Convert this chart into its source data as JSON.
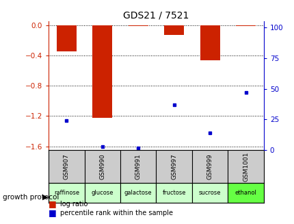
{
  "title": "GDS21 / 7521",
  "samples": [
    "GSM907",
    "GSM990",
    "GSM991",
    "GSM997",
    "GSM999",
    "GSM1001"
  ],
  "protocols": [
    "raffinose",
    "glucose",
    "galactose",
    "fructose",
    "sucrose",
    "ethanol"
  ],
  "log_ratio": [
    -0.35,
    -1.22,
    -0.01,
    -0.13,
    -0.46,
    -0.01
  ],
  "percentile_rank": [
    24,
    3,
    2,
    37,
    14,
    47
  ],
  "ylim_left": [
    -1.65,
    0.05
  ],
  "ylim_right": [
    0,
    105
  ],
  "yticks_left": [
    0,
    -0.4,
    -0.8,
    -1.2,
    -1.6
  ],
  "yticks_right": [
    0,
    25,
    50,
    75,
    100
  ],
  "bar_color": "#cc2200",
  "dot_color": "#0000cc",
  "protocol_bg_light": "#ccffcc",
  "protocol_bg_dark": "#66ff44",
  "sample_bg": "#cccccc",
  "grid_color": "#000000",
  "left_tick_color": "#cc2200",
  "right_tick_color": "#0000cc",
  "legend_log": "log ratio",
  "legend_pct": "percentile rank within the sample",
  "growth_protocol_label": "growth protocol",
  "background_color": "#ffffff"
}
